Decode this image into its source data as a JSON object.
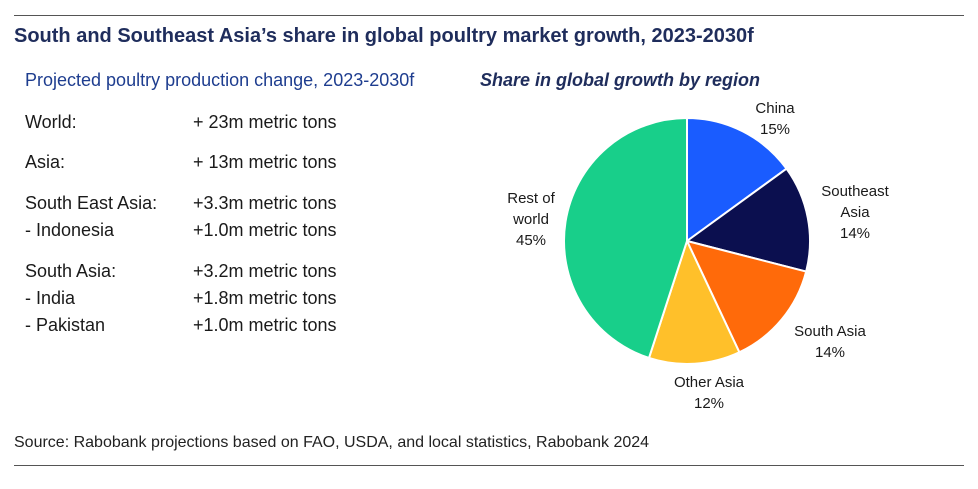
{
  "title": "South and Southeast Asia’s share in global poultry market growth, 2023-2030f",
  "production": {
    "heading": "Projected poultry production change, 2023-2030f",
    "rows": [
      {
        "label": "World:",
        "value": "+ 23m metric tons"
      },
      {
        "label": "Asia:",
        "value": "+ 13m metric tons"
      },
      {
        "label": "South East Asia:",
        "value": "+3.3m metric tons"
      },
      {
        "label": "- Indonesia",
        "value": "+1.0m metric tons"
      },
      {
        "label": "South Asia:",
        "value": "+3.2m metric tons"
      },
      {
        "label": "- India",
        "value": "+1.8m metric tons"
      },
      {
        "label": "- Pakistan",
        "value": "+1.0m metric tons"
      }
    ]
  },
  "chart_data": {
    "type": "pie",
    "title": "Share in global growth by region",
    "slices": [
      {
        "label": "China",
        "value": 15,
        "value_label": "15%",
        "color": "#1a5cff"
      },
      {
        "label": "Southeast Asia",
        "label_lines": [
          "Southeast",
          "Asia"
        ],
        "value": 14,
        "value_label": "14%",
        "color": "#0b0f4f"
      },
      {
        "label": "South Asia",
        "value": 14,
        "value_label": "14%",
        "color": "#ff6a0a"
      },
      {
        "label": "Other Asia",
        "value": 12,
        "value_label": "12%",
        "color": "#ffc02a"
      },
      {
        "label": "Rest of world",
        "label_lines": [
          "Rest of",
          "world"
        ],
        "value": 45,
        "value_label": "45%",
        "color": "#18cf8a"
      }
    ]
  },
  "source": "Source: Rabobank projections based on FAO, USDA, and local statistics, Rabobank 2024"
}
